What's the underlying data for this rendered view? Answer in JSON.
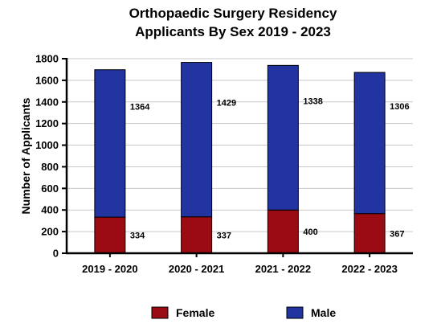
{
  "chart_data": {
    "type": "bar",
    "stacked": true,
    "title_line1": "Orthopaedic Surgery Residency",
    "title_line2": "Applicants By Sex 2019 - 2023",
    "ylabel": "Number of Applicants",
    "xlabel": "",
    "ylim": [
      0,
      1800
    ],
    "yticks": [
      0,
      200,
      400,
      600,
      800,
      1000,
      1200,
      1400,
      1600,
      1800
    ],
    "grid": true,
    "legend_position": "bottom",
    "categories": [
      "2019 - 2020",
      "2020 - 2021",
      "2021 - 2022",
      "2022 - 2023"
    ],
    "series": [
      {
        "name": "Female",
        "color": "#9b0b14",
        "values": [
          334,
          337,
          400,
          367
        ]
      },
      {
        "name": "Male",
        "color": "#2234a0",
        "values": [
          1364,
          1429,
          1338,
          1306
        ]
      }
    ]
  }
}
